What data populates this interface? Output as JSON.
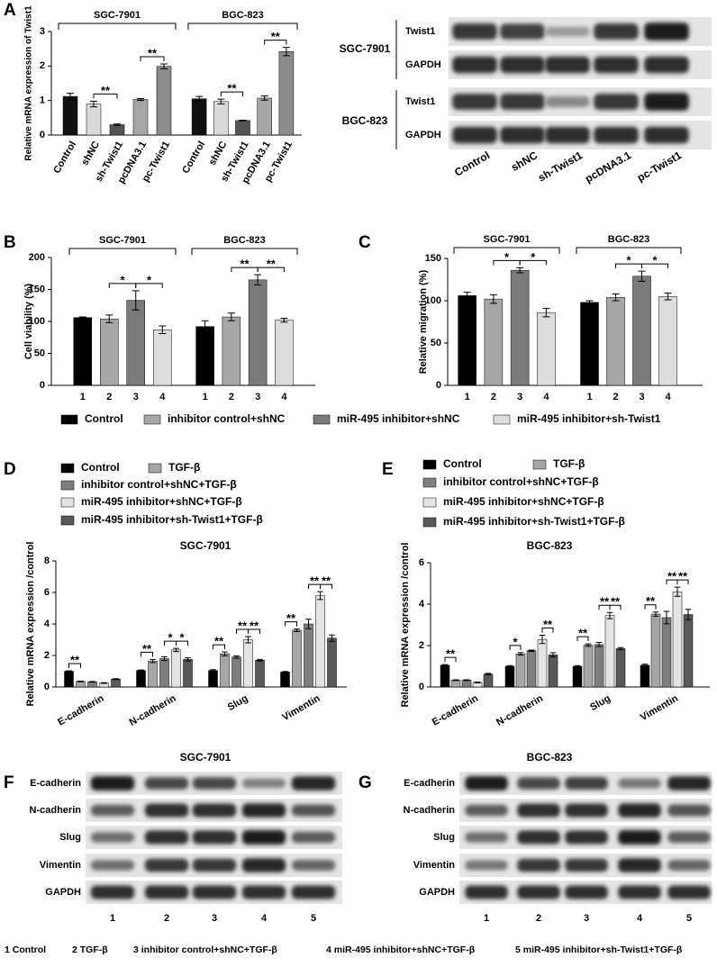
{
  "chart_data": [
    {
      "panel": "A",
      "type": "bar",
      "y_label": "Relative mRNA expression of Twist1",
      "ylim": [
        0,
        3
      ],
      "yticks": [
        0,
        1,
        2,
        3
      ],
      "group_label_position": "top",
      "categories": [
        "SGC-7901",
        "BGC-823"
      ],
      "series": [
        {
          "name": "Control",
          "color": "#111111",
          "values": [
            1.12,
            1.05
          ],
          "errors": [
            0.09,
            0.07
          ]
        },
        {
          "name": "shNC",
          "color": "#d9d9d9",
          "values": [
            0.9,
            0.97
          ],
          "errors": [
            0.08,
            0.07
          ]
        },
        {
          "name": "sh-Twist1",
          "color": "#555555",
          "values": [
            0.3,
            0.42
          ],
          "errors": [
            0.02,
            0.01
          ]
        },
        {
          "name": "pcDNA3.1",
          "color": "#a6a6a6",
          "values": [
            1.03,
            1.07
          ],
          "errors": [
            0.03,
            0.06
          ]
        },
        {
          "name": "pc-Twist1",
          "color": "#8c8c8c",
          "values": [
            1.99,
            2.42
          ],
          "errors": [
            0.07,
            0.12
          ]
        }
      ],
      "significance": [
        {
          "category": 0,
          "from": 1,
          "to": 2,
          "label": "**"
        },
        {
          "category": 0,
          "from": 3,
          "to": 4,
          "label": "**"
        },
        {
          "category": 1,
          "from": 1,
          "to": 2,
          "label": "**"
        },
        {
          "category": 1,
          "from": 3,
          "to": 4,
          "label": "**"
        }
      ]
    },
    {
      "panel": "B",
      "type": "bar",
      "y_label": "Cell viability (%)",
      "ylim": [
        0,
        200
      ],
      "yticks": [
        0,
        50,
        100,
        150,
        200
      ],
      "group_label_position": "top",
      "categories": [
        "SGC-7901",
        "BGC-823"
      ],
      "bar_labels": [
        "1",
        "2",
        "3",
        "4"
      ],
      "series": [
        {
          "name": "Control",
          "color": "#000000",
          "values": [
            106,
            92
          ],
          "errors": [
            1,
            9
          ]
        },
        {
          "name": "inhibitor control+shNC",
          "color": "#a6a6a6",
          "values": [
            104,
            107
          ],
          "errors": [
            6,
            6
          ]
        },
        {
          "name": "miR-495 inhibitor+shNC",
          "color": "#7a7a7a",
          "values": [
            133,
            165
          ],
          "errors": [
            15,
            8
          ]
        },
        {
          "name": "miR-495 inhibitor+sh-Twist1",
          "color": "#dcdcdc",
          "values": [
            87,
            102
          ],
          "errors": [
            6,
            3
          ]
        }
      ],
      "significance": [
        {
          "category": 0,
          "from": 1,
          "to": 2,
          "label": "*"
        },
        {
          "category": 0,
          "from": 2,
          "to": 3,
          "label": "*"
        },
        {
          "category": 1,
          "from": 1,
          "to": 2,
          "label": "**"
        },
        {
          "category": 1,
          "from": 2,
          "to": 3,
          "label": "**"
        }
      ]
    },
    {
      "panel": "C",
      "type": "bar",
      "y_label": "Relative migration (%)",
      "ylim": [
        0,
        150
      ],
      "yticks": [
        0,
        50,
        100,
        150
      ],
      "group_label_position": "top",
      "categories": [
        "SGC-7901",
        "BGC-823"
      ],
      "bar_labels": [
        "1",
        "2",
        "3",
        "4"
      ],
      "series": [
        {
          "color": "#000000",
          "values": [
            106,
            98
          ],
          "errors": [
            4,
            2
          ]
        },
        {
          "color": "#a6a6a6",
          "values": [
            102,
            104
          ],
          "errors": [
            5,
            4
          ]
        },
        {
          "color": "#7a7a7a",
          "values": [
            136,
            129
          ],
          "errors": [
            3,
            6
          ]
        },
        {
          "color": "#dcdcdc",
          "values": [
            86,
            105
          ],
          "errors": [
            5,
            4
          ]
        }
      ],
      "significance": [
        {
          "category": 0,
          "from": 1,
          "to": 2,
          "label": "*"
        },
        {
          "category": 0,
          "from": 2,
          "to": 3,
          "label": "*"
        },
        {
          "category": 1,
          "from": 1,
          "to": 2,
          "label": "*"
        },
        {
          "category": 1,
          "from": 2,
          "to": 3,
          "label": "*"
        }
      ]
    },
    {
      "panel": "D",
      "type": "bar",
      "title": "SGC-7901",
      "y_label": "Relative mRNA expression /control",
      "ylim": [
        0,
        8
      ],
      "yticks": [
        0,
        2,
        4,
        6,
        8
      ],
      "group_label_position": "bottom",
      "categories": [
        "E-cadherin",
        "N-cadherin",
        "Slug",
        "Vimentin"
      ],
      "series": [
        {
          "name": "Control",
          "color": "#000000",
          "values": [
            1.0,
            1.05,
            1.05,
            0.95
          ],
          "errors": [
            0.03,
            0.03,
            0.05,
            0.03
          ]
        },
        {
          "name": "TGF-β",
          "color": "#a6a6a6",
          "values": [
            0.35,
            1.65,
            2.1,
            3.6
          ],
          "errors": [
            0.02,
            0.1,
            0.12,
            0.08
          ]
        },
        {
          "name": "inhibitor control+shNC+TGF-β",
          "color": "#7f7f7f",
          "values": [
            0.33,
            1.8,
            1.9,
            4.0
          ],
          "errors": [
            0.02,
            0.12,
            0.07,
            0.3
          ]
        },
        {
          "name": "miR-495 inhibitor+shNC+TGF-β",
          "color": "#e3e3e3",
          "values": [
            0.25,
            2.35,
            3.0,
            5.8
          ],
          "errors": [
            0.02,
            0.1,
            0.2,
            0.25
          ]
        },
        {
          "name": "miR-495 inhibitor+sh-Twist1+TGF-β",
          "color": "#595959",
          "values": [
            0.5,
            1.75,
            1.7,
            3.1
          ],
          "errors": [
            0.03,
            0.1,
            0.05,
            0.2
          ]
        }
      ],
      "significance": [
        {
          "category": 0,
          "from": 0,
          "to": 1,
          "label": "**"
        },
        {
          "category": 1,
          "from": 0,
          "to": 1,
          "label": "**"
        },
        {
          "category": 1,
          "from": 2,
          "to": 3,
          "label": "*"
        },
        {
          "category": 1,
          "from": 3,
          "to": 4,
          "label": "*"
        },
        {
          "category": 2,
          "from": 0,
          "to": 1,
          "label": "**"
        },
        {
          "category": 2,
          "from": 2,
          "to": 3,
          "label": "**"
        },
        {
          "category": 2,
          "from": 3,
          "to": 4,
          "label": "**"
        },
        {
          "category": 3,
          "from": 0,
          "to": 1,
          "label": "**"
        },
        {
          "category": 3,
          "from": 2,
          "to": 3,
          "label": "**"
        },
        {
          "category": 3,
          "from": 3,
          "to": 4,
          "label": "**"
        }
      ]
    },
    {
      "panel": "E",
      "type": "bar",
      "title": "BGC-823",
      "y_label": "Relative mRNA expression /control",
      "ylim": [
        0,
        6
      ],
      "yticks": [
        0,
        2,
        4,
        6
      ],
      "group_label_position": "bottom",
      "categories": [
        "E-cadherin",
        "N-cadherin",
        "Slug",
        "Vimentin"
      ],
      "series": [
        {
          "name": "Control",
          "color": "#000000",
          "values": [
            1.05,
            1.0,
            1.0,
            1.05
          ],
          "errors": [
            0.03,
            0.03,
            0.03,
            0.05
          ]
        },
        {
          "name": "TGF-β",
          "color": "#a6a6a6",
          "values": [
            0.33,
            1.6,
            2.02,
            3.52
          ],
          "errors": [
            0.02,
            0.06,
            0.06,
            0.1
          ]
        },
        {
          "name": "inhibitor control+shNC+TGF-β",
          "color": "#7f7f7f",
          "values": [
            0.33,
            1.75,
            2.05,
            3.35
          ],
          "errors": [
            0.02,
            0.03,
            0.1,
            0.3
          ]
        },
        {
          "name": "miR-495 inhibitor+shNC+TGF-β",
          "color": "#e3e3e3",
          "values": [
            0.22,
            2.3,
            3.45,
            4.6
          ],
          "errors": [
            0.02,
            0.2,
            0.15,
            0.22
          ]
        },
        {
          "name": "miR-495 inhibitor+sh-Twist1+TGF-β",
          "color": "#595959",
          "values": [
            0.62,
            1.55,
            1.85,
            3.5
          ],
          "errors": [
            0.04,
            0.1,
            0.05,
            0.25
          ]
        }
      ],
      "significance": [
        {
          "category": 0,
          "from": 0,
          "to": 1,
          "label": "**"
        },
        {
          "category": 1,
          "from": 0,
          "to": 1,
          "label": "*"
        },
        {
          "category": 1,
          "from": 3,
          "to": 4,
          "label": "**"
        },
        {
          "category": 2,
          "from": 0,
          "to": 1,
          "label": "**"
        },
        {
          "category": 2,
          "from": 2,
          "to": 3,
          "label": "**"
        },
        {
          "category": 2,
          "from": 3,
          "to": 4,
          "label": "**"
        },
        {
          "category": 3,
          "from": 0,
          "to": 1,
          "label": "**"
        },
        {
          "category": 3,
          "from": 2,
          "to": 3,
          "label": "**"
        },
        {
          "category": 3,
          "from": 3,
          "to": 4,
          "label": "**"
        }
      ]
    }
  ],
  "blots": [
    {
      "groups": [
        {
          "name": "SGC-7901",
          "rows": [
            "Twist1",
            "GAPDH"
          ]
        },
        {
          "name": "BGC-823",
          "rows": [
            "Twist1",
            "GAPDH"
          ]
        }
      ],
      "lanes": [
        "Control",
        "shNC",
        "sh-Twist1",
        "pcDNA3.1",
        "pc-Twist1"
      ]
    },
    {
      "panel": "F",
      "title": "SGC-7901",
      "groups": [
        {
          "rows": [
            "E-cadherin",
            "N-cadherin",
            "Slug",
            "Vimentin",
            "GAPDH"
          ]
        }
      ],
      "lanes": [
        "1",
        "2",
        "3",
        "4",
        "5"
      ]
    },
    {
      "panel": "G",
      "title": "BGC-823",
      "groups": [
        {
          "rows": [
            "E-cadherin",
            "N-cadherin",
            "Slug",
            "Vimentin",
            "GAPDH"
          ]
        }
      ],
      "lanes": [
        "1",
        "2",
        "3",
        "4",
        "5"
      ]
    }
  ],
  "lane_key": [
    "1 Control",
    "2 TGF-β",
    "3 inhibitor control+shNC+TGF-β",
    "4 miR-495 inhibitor+shNC+TGF-β",
    "5 miR-495 inhibitor+sh-Twist1+TGF-β"
  ]
}
